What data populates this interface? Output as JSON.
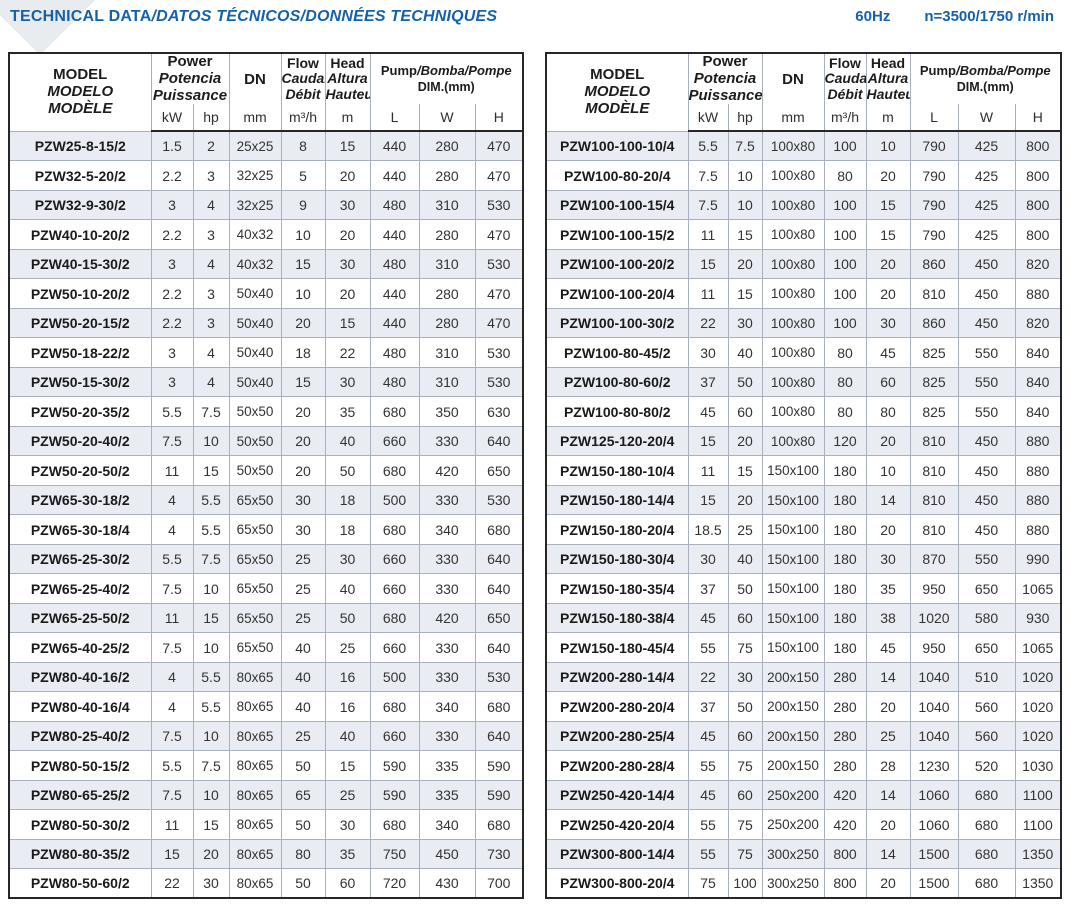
{
  "page": {
    "title_main": "TECHNICAL DATA",
    "title_rest": "/DATOS TÉCNICOS/DONNÉES TECHNIQUES",
    "frequency": "60Hz",
    "speed": "n=3500/1750 r/min"
  },
  "colors": {
    "accent_blue": "#1461ac",
    "row_alt": "#e9edf3",
    "grid_line": "#a8b1bd",
    "outer_border": "#262626"
  },
  "columns": {
    "model": {
      "l1": "MODEL",
      "l2": "MODELO",
      "l3": "MODÈLE"
    },
    "power": {
      "l1": "Power",
      "l2": "Potencia",
      "l3": "Puissance",
      "unit_kw": "kW",
      "unit_hp": "hp"
    },
    "dn": {
      "l1": "DN",
      "unit": "mm"
    },
    "flow": {
      "l1": "Flow",
      "l2": "Caudal",
      "l3": "Débit",
      "unit": "m³/h"
    },
    "head": {
      "l1": "Head",
      "l2": "Altura",
      "l3": "Hauteur",
      "unit": "m"
    },
    "pump": {
      "l1_main": "Pump",
      "l1_rest": "/Bomba/Pompe",
      "l2": "DIM.(mm)",
      "unit_l": "L",
      "unit_w": "W",
      "unit_h": "H"
    }
  },
  "tables": {
    "left": {
      "rows": [
        [
          "PZW25-8-15/2",
          "1.5",
          "2",
          "25x25",
          "8",
          "15",
          "440",
          "280",
          "470"
        ],
        [
          "PZW32-5-20/2",
          "2.2",
          "3",
          "32x25",
          "5",
          "20",
          "440",
          "280",
          "470"
        ],
        [
          "PZW32-9-30/2",
          "3",
          "4",
          "32x25",
          "9",
          "30",
          "480",
          "310",
          "530"
        ],
        [
          "PZW40-10-20/2",
          "2.2",
          "3",
          "40x32",
          "10",
          "20",
          "440",
          "280",
          "470"
        ],
        [
          "PZW40-15-30/2",
          "3",
          "4",
          "40x32",
          "15",
          "30",
          "480",
          "310",
          "530"
        ],
        [
          "PZW50-10-20/2",
          "2.2",
          "3",
          "50x40",
          "10",
          "20",
          "440",
          "280",
          "470"
        ],
        [
          "PZW50-20-15/2",
          "2.2",
          "3",
          "50x40",
          "20",
          "15",
          "440",
          "280",
          "470"
        ],
        [
          "PZW50-18-22/2",
          "3",
          "4",
          "50x40",
          "18",
          "22",
          "480",
          "310",
          "530"
        ],
        [
          "PZW50-15-30/2",
          "3",
          "4",
          "50x40",
          "15",
          "30",
          "480",
          "310",
          "530"
        ],
        [
          "PZW50-20-35/2",
          "5.5",
          "7.5",
          "50x50",
          "20",
          "35",
          "680",
          "350",
          "630"
        ],
        [
          "PZW50-20-40/2",
          "7.5",
          "10",
          "50x50",
          "20",
          "40",
          "660",
          "330",
          "640"
        ],
        [
          "PZW50-20-50/2",
          "11",
          "15",
          "50x50",
          "20",
          "50",
          "680",
          "420",
          "650"
        ],
        [
          "PZW65-30-18/2",
          "4",
          "5.5",
          "65x50",
          "30",
          "18",
          "500",
          "330",
          "530"
        ],
        [
          "PZW65-30-18/4",
          "4",
          "5.5",
          "65x50",
          "30",
          "18",
          "680",
          "340",
          "680"
        ],
        [
          "PZW65-25-30/2",
          "5.5",
          "7.5",
          "65x50",
          "25",
          "30",
          "660",
          "330",
          "640"
        ],
        [
          "PZW65-25-40/2",
          "7.5",
          "10",
          "65x50",
          "25",
          "40",
          "660",
          "330",
          "640"
        ],
        [
          "PZW65-25-50/2",
          "11",
          "15",
          "65x50",
          "25",
          "50",
          "680",
          "420",
          "650"
        ],
        [
          "PZW65-40-25/2",
          "7.5",
          "10",
          "65x50",
          "40",
          "25",
          "660",
          "330",
          "640"
        ],
        [
          "PZW80-40-16/2",
          "4",
          "5.5",
          "80x65",
          "40",
          "16",
          "500",
          "330",
          "530"
        ],
        [
          "PZW80-40-16/4",
          "4",
          "5.5",
          "80x65",
          "40",
          "16",
          "680",
          "340",
          "680"
        ],
        [
          "PZW80-25-40/2",
          "7.5",
          "10",
          "80x65",
          "25",
          "40",
          "660",
          "330",
          "640"
        ],
        [
          "PZW80-50-15/2",
          "5.5",
          "7.5",
          "80x65",
          "50",
          "15",
          "590",
          "335",
          "590"
        ],
        [
          "PZW80-65-25/2",
          "7.5",
          "10",
          "80x65",
          "65",
          "25",
          "590",
          "335",
          "590"
        ],
        [
          "PZW80-50-30/2",
          "11",
          "15",
          "80x65",
          "50",
          "30",
          "680",
          "340",
          "680"
        ],
        [
          "PZW80-80-35/2",
          "15",
          "20",
          "80x65",
          "80",
          "35",
          "750",
          "450",
          "730"
        ],
        [
          "PZW80-50-60/2",
          "22",
          "30",
          "80x65",
          "50",
          "60",
          "720",
          "430",
          "700"
        ]
      ]
    },
    "right": {
      "rows": [
        [
          "PZW100-100-10/4",
          "5.5",
          "7.5",
          "100x80",
          "100",
          "10",
          "790",
          "425",
          "800"
        ],
        [
          "PZW100-80-20/4",
          "7.5",
          "10",
          "100x80",
          "80",
          "20",
          "790",
          "425",
          "800"
        ],
        [
          "PZW100-100-15/4",
          "7.5",
          "10",
          "100x80",
          "100",
          "15",
          "790",
          "425",
          "800"
        ],
        [
          "PZW100-100-15/2",
          "11",
          "15",
          "100x80",
          "100",
          "15",
          "790",
          "425",
          "800"
        ],
        [
          "PZW100-100-20/2",
          "15",
          "20",
          "100x80",
          "100",
          "20",
          "860",
          "450",
          "820"
        ],
        [
          "PZW100-100-20/4",
          "11",
          "15",
          "100x80",
          "100",
          "20",
          "810",
          "450",
          "880"
        ],
        [
          "PZW100-100-30/2",
          "22",
          "30",
          "100x80",
          "100",
          "30",
          "860",
          "450",
          "820"
        ],
        [
          "PZW100-80-45/2",
          "30",
          "40",
          "100x80",
          "80",
          "45",
          "825",
          "550",
          "840"
        ],
        [
          "PZW100-80-60/2",
          "37",
          "50",
          "100x80",
          "80",
          "60",
          "825",
          "550",
          "840"
        ],
        [
          "PZW100-80-80/2",
          "45",
          "60",
          "100x80",
          "80",
          "80",
          "825",
          "550",
          "840"
        ],
        [
          "PZW125-120-20/4",
          "15",
          "20",
          "100x80",
          "120",
          "20",
          "810",
          "450",
          "880"
        ],
        [
          "PZW150-180-10/4",
          "11",
          "15",
          "150x100",
          "180",
          "10",
          "810",
          "450",
          "880"
        ],
        [
          "PZW150-180-14/4",
          "15",
          "20",
          "150x100",
          "180",
          "14",
          "810",
          "450",
          "880"
        ],
        [
          "PZW150-180-20/4",
          "18.5",
          "25",
          "150x100",
          "180",
          "20",
          "810",
          "450",
          "880"
        ],
        [
          "PZW150-180-30/4",
          "30",
          "40",
          "150x100",
          "180",
          "30",
          "870",
          "550",
          "990"
        ],
        [
          "PZW150-180-35/4",
          "37",
          "50",
          "150x100",
          "180",
          "35",
          "950",
          "650",
          "1065"
        ],
        [
          "PZW150-180-38/4",
          "45",
          "60",
          "150x100",
          "180",
          "38",
          "1020",
          "580",
          "930"
        ],
        [
          "PZW150-180-45/4",
          "55",
          "75",
          "150x100",
          "180",
          "45",
          "950",
          "650",
          "1065"
        ],
        [
          "PZW200-280-14/4",
          "22",
          "30",
          "200x150",
          "280",
          "14",
          "1040",
          "510",
          "1020"
        ],
        [
          "PZW200-280-20/4",
          "37",
          "50",
          "200x150",
          "280",
          "20",
          "1040",
          "560",
          "1020"
        ],
        [
          "PZW200-280-25/4",
          "45",
          "60",
          "200x150",
          "280",
          "25",
          "1040",
          "560",
          "1020"
        ],
        [
          "PZW200-280-28/4",
          "55",
          "75",
          "200x150",
          "280",
          "28",
          "1230",
          "520",
          "1030"
        ],
        [
          "PZW250-420-14/4",
          "45",
          "60",
          "250x200",
          "420",
          "14",
          "1060",
          "680",
          "1100"
        ],
        [
          "PZW250-420-20/4",
          "55",
          "75",
          "250x200",
          "420",
          "20",
          "1060",
          "680",
          "1100"
        ],
        [
          "PZW300-800-14/4",
          "55",
          "75",
          "300x250",
          "800",
          "14",
          "1500",
          "680",
          "1350"
        ],
        [
          "PZW300-800-20/4",
          "75",
          "100",
          "300x250",
          "800",
          "20",
          "1500",
          "680",
          "1350"
        ]
      ]
    }
  }
}
